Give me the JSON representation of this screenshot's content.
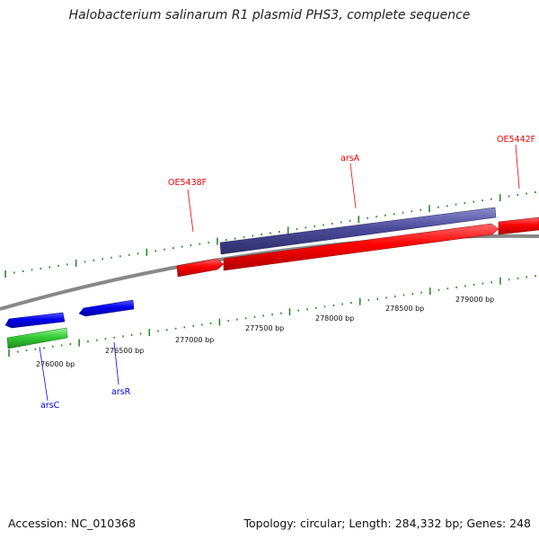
{
  "title": "Halobacterium salinarum R1 plasmid PHS3, complete sequence",
  "footer": {
    "accession": "Accession: NC_010368",
    "topology": "Topology: circular; Length: 284,332 bp; Genes: 248"
  },
  "coordinates": [
    "276000 bp",
    "276500 bp",
    "277000 bp",
    "277500 bp",
    "278000 bp",
    "278500 bp",
    "279000 bp"
  ],
  "genes": [
    {
      "name": "arsC",
      "strand": "reverse",
      "color": "#0000ee"
    },
    {
      "name": "arsR",
      "strand": "reverse",
      "color": "#0000ee"
    },
    {
      "name": "OE5438F",
      "strand": "forward",
      "color": "#ee0000"
    },
    {
      "name": "arsA",
      "strand": "forward",
      "color": "#ee0000"
    },
    {
      "name": "OE5442F",
      "strand": "forward",
      "color": "#ee0000"
    }
  ],
  "colors": {
    "forward_cds": "#ee0000",
    "reverse_cds": "#0000ee",
    "reverse_gene": "#33cc33",
    "forward_gene": "#4a4a9a",
    "backbone": "#888888",
    "ticks": "#2a8a2a"
  }
}
